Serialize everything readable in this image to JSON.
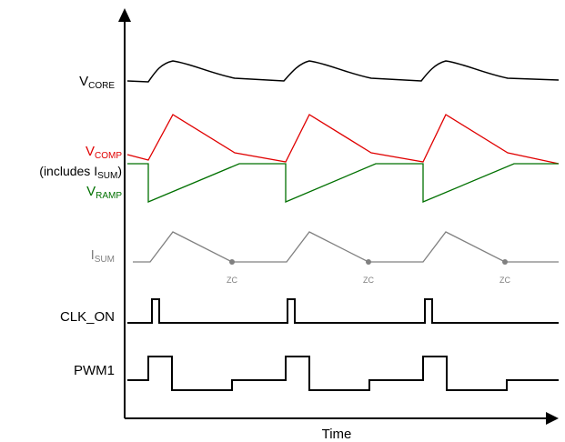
{
  "colors": {
    "axis": "#000000",
    "vcore": "#000000",
    "vcomp": "#e00000",
    "vramp": "#007000",
    "isum": "#808080",
    "clk_on": "#000000",
    "pwm1": "#000000"
  },
  "axis": {
    "xlabel": "Time"
  },
  "signals": {
    "vcore": {
      "main": "V",
      "sub": "CORE"
    },
    "vcomp": {
      "main": "V",
      "sub": "COMP"
    },
    "includes": {
      "pre": "(includes I",
      "sub": "SUM",
      "post": ")"
    },
    "vramp": {
      "main": "V",
      "sub": "RAMP"
    },
    "isum": {
      "main": "I",
      "sub": "SUM"
    },
    "clk_on": {
      "label": "CLK_ON"
    },
    "pwm1": {
      "label": "PWM1"
    }
  },
  "zero_crossings": [
    {
      "label": "ZC"
    },
    {
      "label": "ZC"
    },
    {
      "label": "ZC"
    }
  ]
}
